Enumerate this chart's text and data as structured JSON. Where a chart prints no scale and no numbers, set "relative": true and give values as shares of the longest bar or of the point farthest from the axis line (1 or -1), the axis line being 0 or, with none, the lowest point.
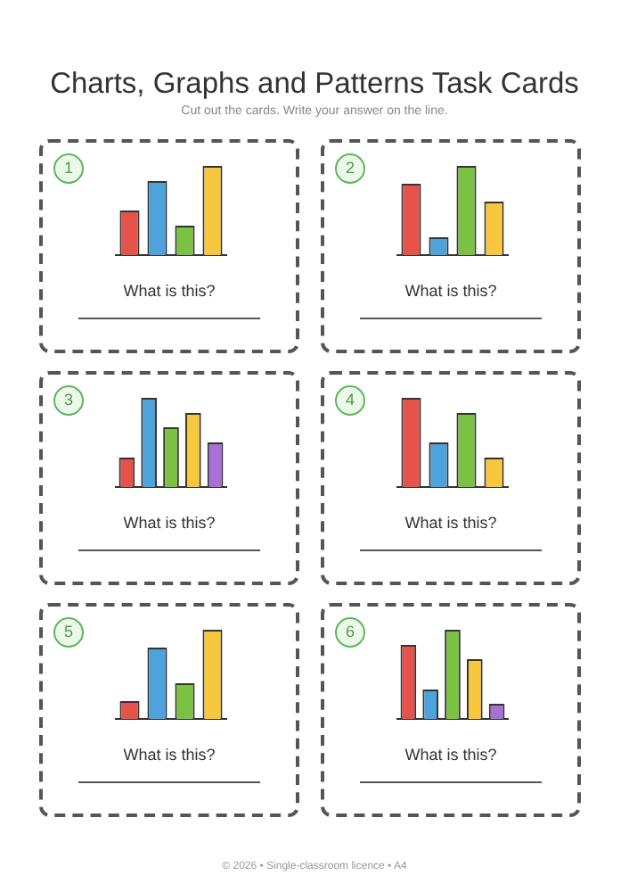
{
  "chart_data": [
    {
      "type": "other",
      "title": "Charts, Graphs and Patterns Task Cards",
      "subtitle": "Cut out the cards. Write your answer on the line."
    },
    {
      "type": "bar",
      "title": "1",
      "annotations": [
        "What is this?"
      ],
      "relative": true,
      "categories": [
        null,
        null,
        null,
        null
      ],
      "values": [
        0.5,
        0.83,
        0.33,
        1
      ],
      "colors": [
        "#e5534b",
        "#4ea3dc",
        "#7cc242",
        "#f7c73e"
      ]
    },
    {
      "type": "bar",
      "title": "2",
      "annotations": [
        "What is this?"
      ],
      "relative": true,
      "categories": [
        null,
        null,
        null,
        null
      ],
      "values": [
        0.8,
        0.2,
        1,
        0.6
      ],
      "colors": [
        "#e5534b",
        "#4ea3dc",
        "#7cc242",
        "#f7c73e"
      ]
    },
    {
      "type": "bar",
      "title": "3",
      "annotations": [
        "What is this?"
      ],
      "relative": true,
      "categories": [
        null,
        null,
        null,
        null,
        null
      ],
      "values": [
        0.33,
        1,
        0.67,
        0.83,
        0.5
      ],
      "colors": [
        "#e5534b",
        "#4ea3dc",
        "#7cc242",
        "#f7c73e",
        "#a86fd6"
      ]
    },
    {
      "type": "bar",
      "title": "4",
      "annotations": [
        "What is this?"
      ],
      "relative": true,
      "categories": [
        null,
        null,
        null,
        null
      ],
      "values": [
        1,
        0.5,
        0.83,
        0.33
      ],
      "colors": [
        "#e5534b",
        "#4ea3dc",
        "#7cc242",
        "#f7c73e"
      ]
    },
    {
      "type": "bar",
      "title": "5",
      "annotations": [
        "What is this?"
      ],
      "relative": true,
      "categories": [
        null,
        null,
        null,
        null
      ],
      "values": [
        0.2,
        0.8,
        0.4,
        1
      ],
      "colors": [
        "#e5534b",
        "#4ea3dc",
        "#7cc242",
        "#f7c73e"
      ]
    },
    {
      "type": "bar",
      "title": "6",
      "annotations": [
        "What is this?"
      ],
      "relative": true,
      "categories": [
        null,
        null,
        null,
        null,
        null
      ],
      "values": [
        0.83,
        0.33,
        1,
        0.67,
        0.17
      ],
      "colors": [
        "#e5534b",
        "#4ea3dc",
        "#7cc242",
        "#f7c73e",
        "#a86fd6"
      ]
    },
    {
      "type": "other",
      "annotations": [
        "© 2026 • Single-classroom licence • A4"
      ]
    }
  ]
}
